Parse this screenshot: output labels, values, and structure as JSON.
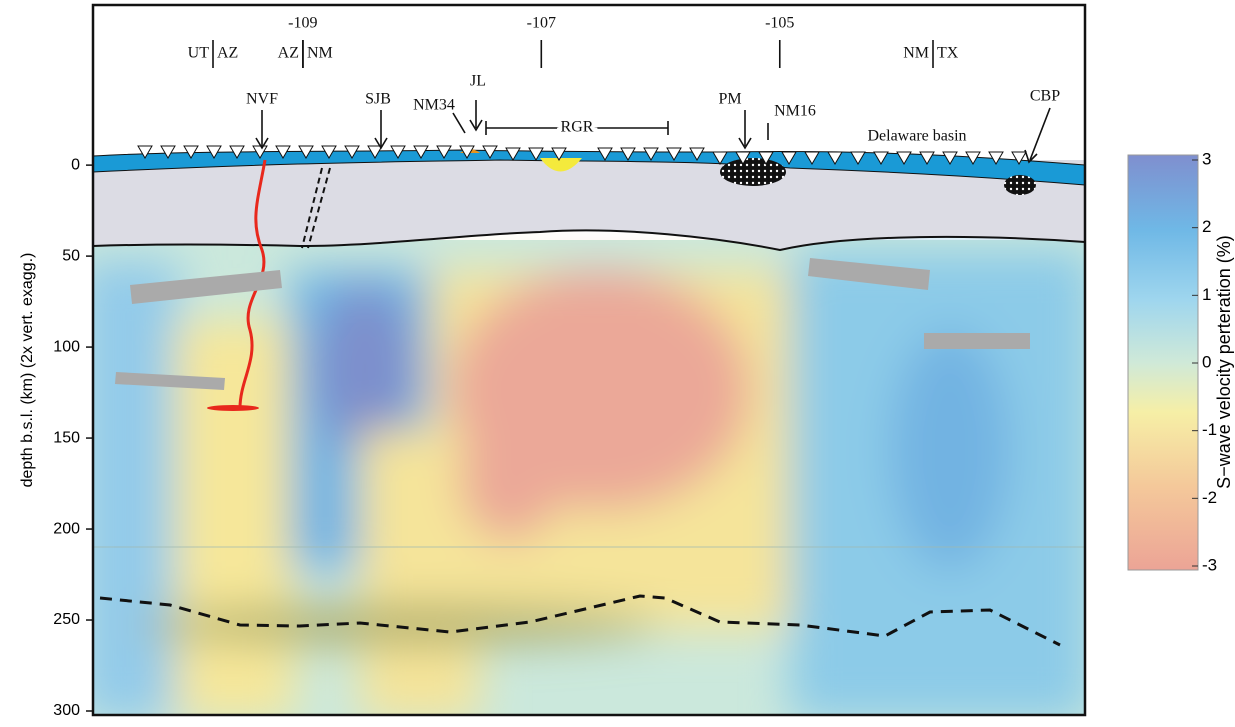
{
  "chart_data": {
    "type": "cross-section",
    "ylabel": "depth b.s.l. (km) (2x vert. exagg.)",
    "ylim": [
      -88,
      300
    ],
    "yticks": [
      0,
      50,
      100,
      150,
      200,
      250,
      300
    ],
    "xlim": [
      -110.76,
      -102.44
    ],
    "xticks": [
      -109,
      -107,
      -105
    ],
    "borders": [
      {
        "left": "UT",
        "right": "AZ"
      },
      {
        "left": "AZ",
        "right": "NM"
      },
      {
        "left": "NM",
        "right": "TX"
      }
    ],
    "annotations": [
      "NVF",
      "SJB",
      "NM34",
      "JL",
      "RGR",
      "PM",
      "NM16",
      "Delaware basin",
      "CBP"
    ],
    "colorbar": {
      "label": "S−wave velocity perteration (%)",
      "lim": [
        -3,
        3
      ],
      "ticks": [
        -3,
        -2,
        -1,
        0,
        1,
        2,
        3
      ]
    }
  }
}
